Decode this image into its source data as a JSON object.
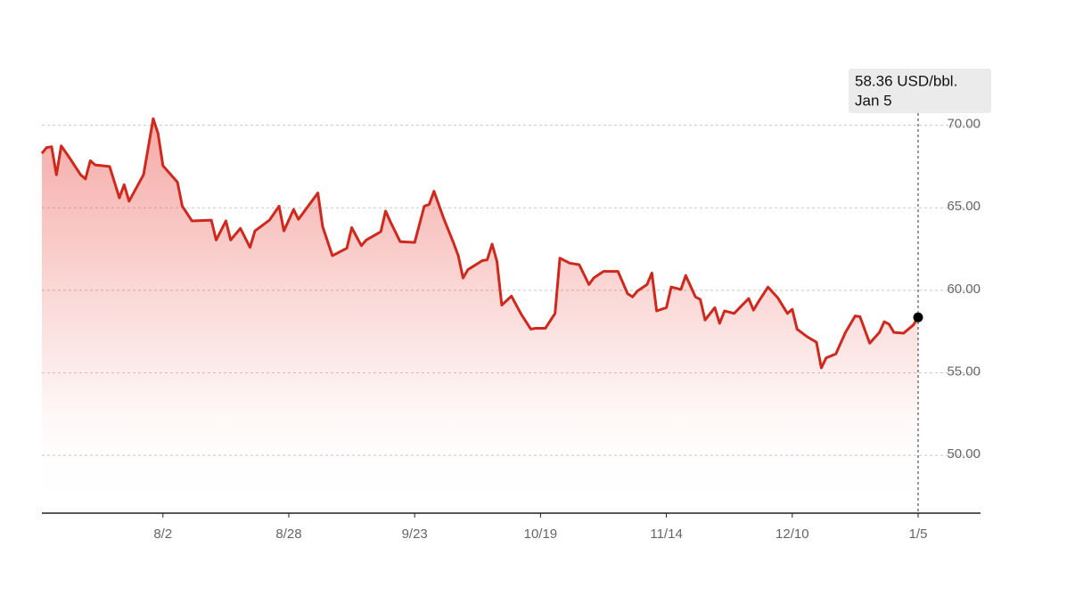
{
  "chart_data": {
    "type": "line",
    "color": "#d0281c",
    "x": [
      "7/8",
      "7/9",
      "7/10",
      "7/11",
      "7/12",
      "7/14",
      "7/16",
      "7/17",
      "7/18",
      "7/19",
      "7/22",
      "7/24",
      "7/25",
      "7/26",
      "7/29",
      "7/31",
      "8/1",
      "8/2",
      "8/5",
      "8/6",
      "8/8",
      "8/12",
      "8/13",
      "8/15",
      "8/16",
      "8/18",
      "8/20",
      "8/21",
      "8/24",
      "8/26",
      "8/27",
      "8/29",
      "8/30",
      "9/3",
      "9/4",
      "9/6",
      "9/9",
      "9/10",
      "9/12",
      "9/13",
      "9/16",
      "9/17",
      "9/18",
      "9/20",
      "9/23",
      "9/25",
      "9/26",
      "9/27",
      "9/29",
      "10/1",
      "10/2",
      "10/3",
      "10/4",
      "10/7",
      "10/8",
      "10/9",
      "10/10",
      "10/11",
      "10/13",
      "10/15",
      "10/17",
      "10/18",
      "10/20",
      "10/22",
      "10/23",
      "10/25",
      "10/27",
      "10/29",
      "10/30",
      "11/1",
      "11/4",
      "11/6",
      "11/7",
      "11/8",
      "11/10",
      "11/11",
      "11/12",
      "11/14",
      "11/15",
      "11/17",
      "11/18",
      "11/20",
      "11/21",
      "11/22",
      "11/24",
      "11/25",
      "11/26",
      "11/28",
      "12/1",
      "12/2",
      "12/3",
      "12/5",
      "12/7",
      "12/9",
      "12/10",
      "12/11",
      "12/13",
      "12/15",
      "12/16",
      "12/17",
      "12/19",
      "12/21",
      "12/23",
      "12/24",
      "12/26",
      "12/28",
      "12/29",
      "12/30",
      "12/31",
      "1/2",
      "1/4",
      "1/5"
    ],
    "values": [
      68.3,
      68.65,
      68.7,
      67.0,
      68.75,
      67.9,
      67.0,
      66.75,
      67.85,
      67.6,
      67.5,
      65.6,
      66.4,
      65.4,
      67.0,
      70.4,
      69.5,
      67.55,
      66.55,
      65.1,
      64.2,
      64.25,
      63.05,
      64.2,
      63.05,
      63.75,
      62.6,
      63.6,
      64.25,
      65.1,
      63.6,
      64.9,
      64.3,
      65.9,
      63.85,
      62.1,
      62.55,
      63.8,
      62.7,
      63.05,
      63.55,
      64.8,
      64.15,
      62.95,
      62.9,
      65.1,
      65.2,
      66.0,
      64.35,
      62.9,
      62.1,
      60.75,
      61.25,
      61.8,
      61.85,
      62.8,
      61.75,
      59.1,
      59.65,
      58.55,
      57.65,
      57.7,
      57.7,
      58.6,
      61.95,
      61.65,
      61.55,
      60.35,
      60.75,
      61.15,
      61.15,
      59.8,
      59.6,
      59.95,
      60.35,
      61.05,
      58.75,
      58.95,
      60.2,
      60.05,
      60.9,
      59.6,
      59.45,
      58.2,
      58.95,
      58.0,
      58.75,
      58.6,
      59.5,
      58.8,
      59.3,
      60.2,
      59.55,
      58.6,
      58.85,
      57.65,
      57.2,
      56.85,
      55.3,
      55.9,
      56.15,
      57.45,
      58.45,
      58.4,
      56.8,
      57.45,
      58.1,
      57.95,
      57.45,
      57.4,
      57.9,
      58.36
    ],
    "xlim": [
      "7/8",
      "1/5"
    ],
    "xticks": [
      "8/2",
      "8/28",
      "9/23",
      "10/19",
      "11/14",
      "12/10",
      "1/5"
    ],
    "ylim": [
      46.5,
      73
    ],
    "yticks": [
      {
        "value": 50,
        "label": "50.00"
      },
      {
        "value": 55,
        "label": "55.00"
      },
      {
        "value": 60,
        "label": "60.00"
      },
      {
        "value": 65,
        "label": "65.00"
      },
      {
        "value": 70,
        "label": "70.00"
      }
    ],
    "grid": true,
    "annotation": {
      "text": "58.36 USD/bbl.",
      "date": "Jan 5"
    }
  }
}
